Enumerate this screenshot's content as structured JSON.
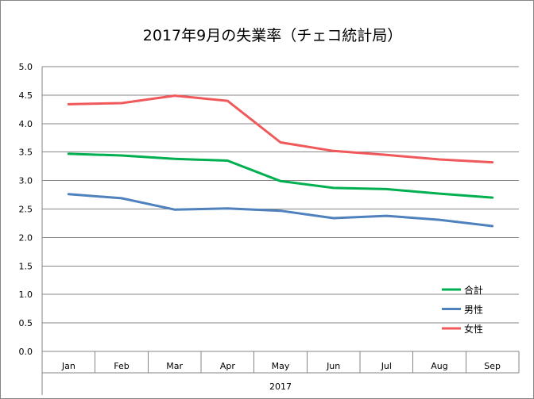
{
  "chart_data": {
    "type": "line",
    "title": "2017年9月の失業率（チェコ統計局）",
    "categories": [
      "Jan",
      "Feb",
      "Mar",
      "Apr",
      "May",
      "Jun",
      "Jul",
      "Aug",
      "Sep"
    ],
    "group_label": "2017",
    "ylim": [
      0,
      5
    ],
    "yticks": [
      "0.0",
      "0.5",
      "1.0",
      "1.5",
      "2.0",
      "2.5",
      "3.0",
      "3.5",
      "4.0",
      "4.5",
      "5.0"
    ],
    "grid": true,
    "legend_position": "right",
    "series": [
      {
        "name": "合計",
        "color": "#00B050",
        "values": [
          3.47,
          3.44,
          3.38,
          3.35,
          2.99,
          2.87,
          2.85,
          2.77,
          2.7
        ]
      },
      {
        "name": "男性",
        "color": "#4F81BD",
        "values": [
          2.76,
          2.69,
          2.49,
          2.51,
          2.47,
          2.34,
          2.38,
          2.31,
          2.2
        ]
      },
      {
        "name": "女性",
        "color": "#F0585A",
        "values": [
          4.34,
          4.36,
          4.49,
          4.4,
          3.67,
          3.52,
          3.45,
          3.37,
          3.32
        ]
      }
    ]
  }
}
